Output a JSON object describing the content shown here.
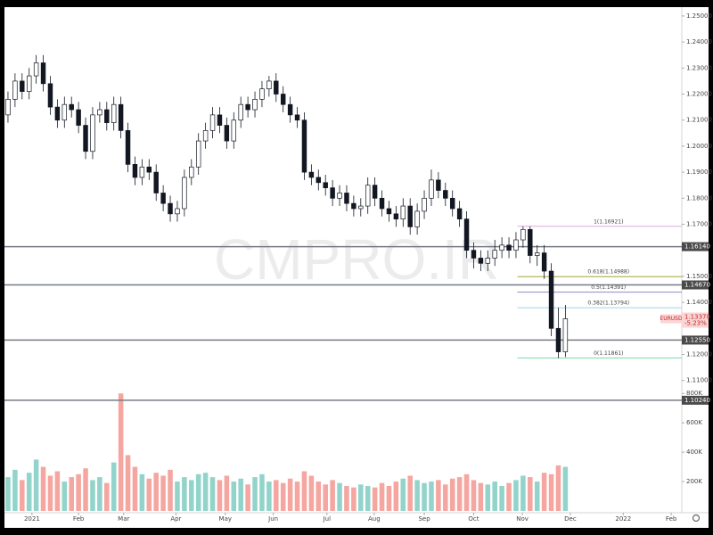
{
  "chart_data": {
    "type": "candlestick",
    "symbol": "EURUSD",
    "last_label": "1.13370",
    "change_label": "-5.23%",
    "watermark": "CMPRO.IR",
    "up_color": "#ffffff",
    "down_color": "#131722",
    "wick_color": "#131722",
    "open": [
      1.212,
      1.218,
      1.225,
      1.221,
      1.227,
      1.232,
      1.224,
      1.215,
      1.21,
      1.216,
      1.214,
      1.208,
      1.198,
      1.212,
      1.214,
      1.209,
      1.216,
      1.206,
      1.193,
      1.188,
      1.192,
      1.19,
      1.182,
      1.178,
      1.174,
      1.176,
      1.188,
      1.192,
      1.202,
      1.206,
      1.212,
      1.208,
      1.202,
      1.21,
      1.216,
      1.214,
      1.218,
      1.222,
      1.225,
      1.22,
      1.216,
      1.212,
      1.21,
      1.19,
      1.188,
      1.186,
      1.184,
      1.18,
      1.182,
      1.178,
      1.176,
      1.177,
      1.185,
      1.18,
      1.176,
      1.174,
      1.172,
      1.177,
      1.169,
      1.175,
      1.18,
      1.187,
      1.183,
      1.18,
      1.176,
      1.172,
      1.16,
      1.157,
      1.155,
      1.157,
      1.16,
      1.162,
      1.16,
      1.164,
      1.168,
      1.158,
      1.159,
      1.152,
      1.13,
      1.121
    ],
    "high": [
      1.221,
      1.228,
      1.228,
      1.23,
      1.235,
      1.235,
      1.227,
      1.218,
      1.219,
      1.219,
      1.217,
      1.211,
      1.215,
      1.217,
      1.217,
      1.219,
      1.219,
      1.209,
      1.196,
      1.195,
      1.195,
      1.193,
      1.185,
      1.181,
      1.179,
      1.191,
      1.195,
      1.205,
      1.209,
      1.215,
      1.215,
      1.211,
      1.213,
      1.219,
      1.219,
      1.221,
      1.225,
      1.227,
      1.228,
      1.223,
      1.219,
      1.215,
      1.213,
      1.193,
      1.191,
      1.189,
      1.187,
      1.185,
      1.185,
      1.181,
      1.18,
      1.188,
      1.188,
      1.183,
      1.179,
      1.177,
      1.18,
      1.18,
      1.178,
      1.183,
      1.191,
      1.19,
      1.186,
      1.183,
      1.179,
      1.175,
      1.163,
      1.16,
      1.16,
      1.164,
      1.165,
      1.165,
      1.167,
      1.1692,
      1.1692,
      1.162,
      1.162,
      1.155,
      1.138,
      1.139
    ],
    "low": [
      1.209,
      1.215,
      1.218,
      1.218,
      1.224,
      1.221,
      1.212,
      1.207,
      1.207,
      1.211,
      1.205,
      1.195,
      1.195,
      1.209,
      1.206,
      1.206,
      1.203,
      1.19,
      1.185,
      1.185,
      1.187,
      1.179,
      1.175,
      1.171,
      1.171,
      1.173,
      1.185,
      1.189,
      1.199,
      1.203,
      1.205,
      1.199,
      1.199,
      1.207,
      1.211,
      1.211,
      1.215,
      1.219,
      1.217,
      1.213,
      1.209,
      1.207,
      1.187,
      1.185,
      1.183,
      1.181,
      1.177,
      1.177,
      1.175,
      1.173,
      1.173,
      1.174,
      1.177,
      1.173,
      1.171,
      1.169,
      1.169,
      1.166,
      1.166,
      1.172,
      1.177,
      1.18,
      1.177,
      1.173,
      1.169,
      1.157,
      1.153,
      1.152,
      1.152,
      1.154,
      1.157,
      1.157,
      1.157,
      1.161,
      1.155,
      1.154,
      1.149,
      1.127,
      1.1186,
      1.119
    ],
    "close": [
      1.218,
      1.225,
      1.221,
      1.227,
      1.232,
      1.224,
      1.215,
      1.21,
      1.216,
      1.214,
      1.208,
      1.198,
      1.212,
      1.214,
      1.209,
      1.216,
      1.206,
      1.193,
      1.188,
      1.192,
      1.19,
      1.182,
      1.178,
      1.174,
      1.176,
      1.188,
      1.192,
      1.202,
      1.206,
      1.212,
      1.208,
      1.202,
      1.21,
      1.216,
      1.214,
      1.218,
      1.222,
      1.225,
      1.22,
      1.216,
      1.212,
      1.21,
      1.19,
      1.188,
      1.186,
      1.184,
      1.18,
      1.182,
      1.178,
      1.176,
      1.177,
      1.185,
      1.18,
      1.176,
      1.174,
      1.172,
      1.177,
      1.169,
      1.175,
      1.18,
      1.187,
      1.183,
      1.18,
      1.176,
      1.172,
      1.16,
      1.157,
      1.155,
      1.157,
      1.16,
      1.162,
      1.16,
      1.164,
      1.168,
      1.158,
      1.159,
      1.152,
      1.13,
      1.121,
      1.1337
    ],
    "xlim": [
      -0.5,
      95.5
    ],
    "xticks": [
      {
        "value": 3.4,
        "label": "2021"
      },
      {
        "value": 10.0,
        "label": "Feb"
      },
      {
        "value": 16.4,
        "label": "Mar"
      },
      {
        "value": 23.8,
        "label": "Apr"
      },
      {
        "value": 30.8,
        "label": "May"
      },
      {
        "value": 37.6,
        "label": "Jun"
      },
      {
        "value": 45.2,
        "label": "Jul"
      },
      {
        "value": 51.9,
        "label": "Aug"
      },
      {
        "value": 59.0,
        "label": "Sep"
      },
      {
        "value": 66.0,
        "label": "Oct"
      },
      {
        "value": 72.9,
        "label": "Nov"
      },
      {
        "value": 79.7,
        "label": "Dec"
      },
      {
        "value": 87.2,
        "label": "2022"
      },
      {
        "value": 94.0,
        "label": "Feb"
      }
    ],
    "ylim": [
      1.1003,
      1.2534
    ],
    "yticks": [
      {
        "value": 1.25,
        "label": "1.25000"
      },
      {
        "value": 1.24,
        "label": "1.24000"
      },
      {
        "value": 1.23,
        "label": "1.23000"
      },
      {
        "value": 1.22,
        "label": "1.22000"
      },
      {
        "value": 1.21,
        "label": "1.21000"
      },
      {
        "value": 1.2,
        "label": "1.20000"
      },
      {
        "value": 1.19,
        "label": "1.19000"
      },
      {
        "value": 1.18,
        "label": "1.18000"
      },
      {
        "value": 1.17,
        "label": "1.17000"
      },
      {
        "value": 1.15,
        "label": "1.15000"
      },
      {
        "value": 1.14,
        "label": "1.14000"
      },
      {
        "value": 1.12,
        "label": "1.12000"
      },
      {
        "value": 1.11,
        "label": "1.11000"
      }
    ],
    "levels": [
      {
        "value": 1.1614,
        "label": "1.16140"
      },
      {
        "value": 1.1467,
        "label": "1.14670"
      },
      {
        "value": 1.1255,
        "label": "1.12550"
      },
      {
        "value": 1.1024,
        "label": "1.10240"
      }
    ],
    "level_color": "#787b86",
    "fib": [
      {
        "value": 1.16921,
        "label": "1(1.16921)",
        "color": "#e1a8e8"
      },
      {
        "value": 1.14988,
        "label": "0.618(1.14988)",
        "color": "#a3a838"
      },
      {
        "value": 1.14391,
        "label": "0.5(1.14391)",
        "color": "#8c8cc7"
      },
      {
        "value": 1.13794,
        "label": "0.382(1.13794)",
        "color": "#9fd5e8"
      },
      {
        "value": 1.11861,
        "label": "0(1.11861)",
        "color": "#7ed9a8"
      }
    ],
    "volume": {
      "values": [
        230000,
        280000,
        210000,
        260000,
        350000,
        300000,
        240000,
        270000,
        200000,
        230000,
        250000,
        290000,
        210000,
        230000,
        190000,
        330000,
        800000,
        380000,
        300000,
        250000,
        220000,
        260000,
        240000,
        280000,
        200000,
        230000,
        210000,
        250000,
        260000,
        230000,
        210000,
        240000,
        200000,
        220000,
        180000,
        230000,
        250000,
        200000,
        210000,
        190000,
        220000,
        200000,
        270000,
        240000,
        200000,
        180000,
        210000,
        190000,
        170000,
        160000,
        180000,
        170000,
        160000,
        190000,
        170000,
        200000,
        220000,
        240000,
        210000,
        190000,
        200000,
        210000,
        180000,
        220000,
        230000,
        250000,
        210000,
        190000,
        180000,
        200000,
        170000,
        190000,
        210000,
        240000,
        230000,
        200000,
        260000,
        250000,
        310000,
        300000
      ],
      "ylim": [
        0,
        850000
      ],
      "yticks": [
        {
          "value": 800000,
          "label": "800K"
        },
        {
          "value": 600000,
          "label": "600K"
        },
        {
          "value": 400000,
          "label": "400K"
        },
        {
          "value": 200000,
          "label": "200K"
        }
      ],
      "up_color": "#92d4cb",
      "down_color": "#f5a6a0"
    }
  }
}
